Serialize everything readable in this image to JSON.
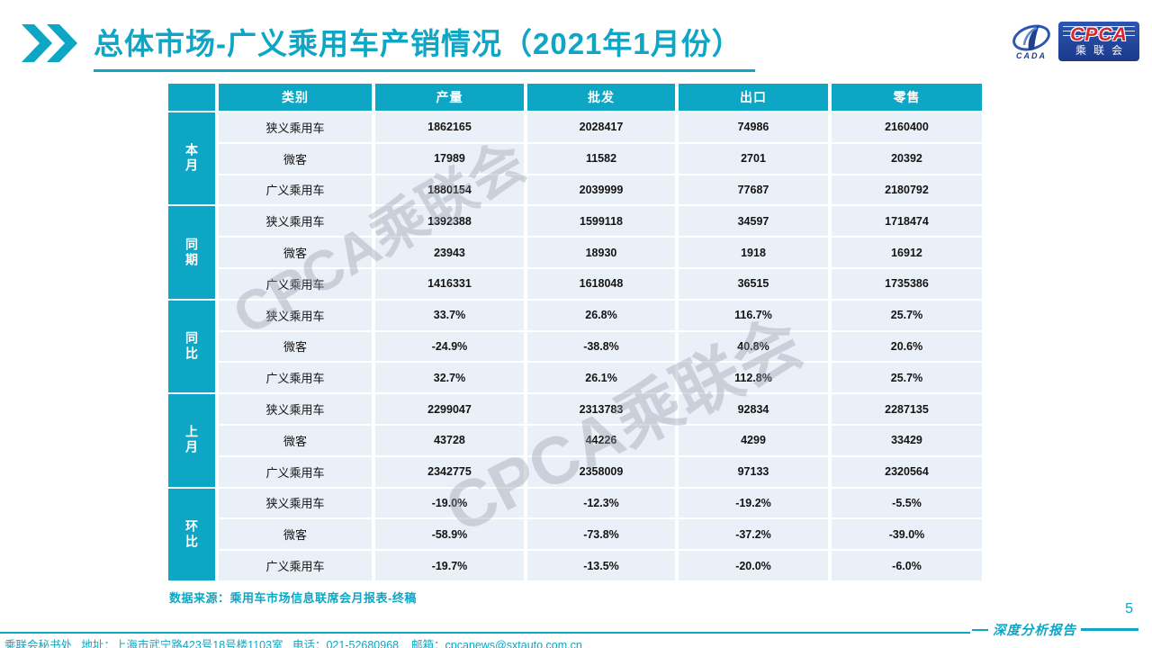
{
  "header": {
    "title": "总体市场-广义乘用车产销情况（2021年1月份）"
  },
  "logo": {
    "cpca": "CPCA",
    "cada": "CADA",
    "cn_name": "乘联会"
  },
  "watermark": {
    "text": "CPCA乘联会"
  },
  "table": {
    "columns": [
      "类别",
      "产量",
      "批发",
      "出口",
      "零售"
    ],
    "groups": [
      {
        "label": "本月",
        "rows": [
          {
            "category": "狭义乘用车",
            "values": [
              "1862165",
              "2028417",
              "74986",
              "2160400"
            ]
          },
          {
            "category": "微客",
            "values": [
              "17989",
              "11582",
              "2701",
              "20392"
            ]
          },
          {
            "category": "广义乘用车",
            "values": [
              "1880154",
              "2039999",
              "77687",
              "2180792"
            ]
          }
        ]
      },
      {
        "label": "同期",
        "rows": [
          {
            "category": "狭义乘用车",
            "values": [
              "1392388",
              "1599118",
              "34597",
              "1718474"
            ]
          },
          {
            "category": "微客",
            "values": [
              "23943",
              "18930",
              "1918",
              "16912"
            ]
          },
          {
            "category": "广义乘用车",
            "values": [
              "1416331",
              "1618048",
              "36515",
              "1735386"
            ]
          }
        ]
      },
      {
        "label": "同比",
        "rows": [
          {
            "category": "狭义乘用车",
            "values": [
              "33.7%",
              "26.8%",
              "116.7%",
              "25.7%"
            ]
          },
          {
            "category": "微客",
            "values": [
              "-24.9%",
              "-38.8%",
              "40.8%",
              "20.6%"
            ]
          },
          {
            "category": "广义乘用车",
            "values": [
              "32.7%",
              "26.1%",
              "112.8%",
              "25.7%"
            ]
          }
        ]
      },
      {
        "label": "上月",
        "rows": [
          {
            "category": "狭义乘用车",
            "values": [
              "2299047",
              "2313783",
              "92834",
              "2287135"
            ]
          },
          {
            "category": "微客",
            "values": [
              "43728",
              "44226",
              "4299",
              "33429"
            ]
          },
          {
            "category": "广义乘用车",
            "values": [
              "2342775",
              "2358009",
              "97133",
              "2320564"
            ]
          }
        ]
      },
      {
        "label": "环比",
        "rows": [
          {
            "category": "狭义乘用车",
            "values": [
              "-19.0%",
              "-12.3%",
              "-19.2%",
              "-5.5%"
            ]
          },
          {
            "category": "微客",
            "values": [
              "-58.9%",
              "-73.8%",
              "-37.2%",
              "-39.0%"
            ]
          },
          {
            "category": "广义乘用车",
            "values": [
              "-19.7%",
              "-13.5%",
              "-20.0%",
              "-6.0%"
            ]
          }
        ]
      }
    ]
  },
  "source_note": "数据来源：乘用车市场信息联席会月报表-终稿",
  "footer": {
    "contact": "乘联会秘书处   地址：上海市武宁路423号18号楼1103室   电话：021-52680968    邮箱：cpcanews@sxtauto.com.cn",
    "report_label": "深度分析报告",
    "page_number": "5"
  },
  "colors": {
    "accent": "#0da6c4",
    "row_bg": "#eaf0f8",
    "watermark_gray": "rgba(150,156,165,0.38)",
    "logo_blue": "#20418f",
    "logo_red": "#d8262c"
  }
}
